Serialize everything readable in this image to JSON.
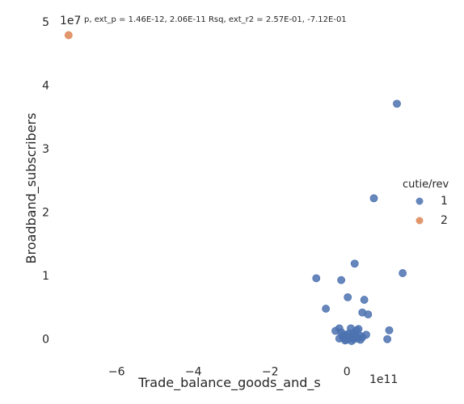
{
  "chart_data": {
    "type": "scatter",
    "title": "p, ext_p = 1.46E-12, 2.06E-11 Rsq, ext_r2 = 2.57E-01, -7.12E-01",
    "xlabel": "Trade_balance_goods_and_s",
    "ylabel": "Broadband_subscribers",
    "x_offset_label": "1e11",
    "y_offset_label": "1e7",
    "xlim": [
      -7.5,
      1.7
    ],
    "ylim": [
      -0.35,
      5.1
    ],
    "x_unit_scale": 100000000000.0,
    "y_unit_scale": 10000000.0,
    "xticks": [
      -6,
      -4,
      -2,
      0
    ],
    "xtick_labels": [
      "−6",
      "−4",
      "−2",
      "0"
    ],
    "yticks": [
      0,
      1,
      2,
      3,
      4,
      5
    ],
    "ytick_labels": [
      "0",
      "1",
      "2",
      "3",
      "4",
      "5"
    ],
    "grid": false,
    "legend": {
      "title": "cutie/rev",
      "placement": "center-right"
    },
    "series": [
      {
        "name": "1",
        "color": "#4c72b0",
        "points": [
          [
            1.3,
            3.72
          ],
          [
            0.7,
            2.23
          ],
          [
            0.2,
            1.2
          ],
          [
            1.45,
            1.05
          ],
          [
            -0.8,
            0.97
          ],
          [
            -0.15,
            0.94
          ],
          [
            0.02,
            0.67
          ],
          [
            0.45,
            0.63
          ],
          [
            -0.55,
            0.49
          ],
          [
            0.4,
            0.43
          ],
          [
            0.55,
            0.4
          ],
          [
            -0.2,
            0.18
          ],
          [
            -0.3,
            0.14
          ],
          [
            -0.15,
            0.12
          ],
          [
            0.1,
            0.18
          ],
          [
            0.25,
            0.15
          ],
          [
            0.3,
            0.17
          ],
          [
            0.15,
            0.1
          ],
          [
            -0.05,
            0.08
          ],
          [
            0.05,
            0.1
          ],
          [
            0.2,
            0.08
          ],
          [
            0.35,
            0.06
          ],
          [
            0.5,
            0.08
          ],
          [
            -0.2,
            0.02
          ],
          [
            -0.1,
            0.03
          ],
          [
            0.0,
            0.0
          ],
          [
            0.08,
            0.03
          ],
          [
            0.18,
            0.01
          ],
          [
            0.28,
            0.02
          ],
          [
            0.35,
            0.0
          ],
          [
            -0.05,
            -0.01
          ],
          [
            0.12,
            -0.02
          ],
          [
            0.25,
            0.04
          ],
          [
            0.4,
            0.04
          ],
          [
            0.03,
            0.05
          ],
          [
            -0.12,
            0.06
          ],
          [
            1.1,
            0.15
          ],
          [
            1.05,
            0.01
          ]
        ]
      },
      {
        "name": "2",
        "color": "#dd8452",
        "points": [
          [
            -7.25,
            4.8
          ]
        ]
      }
    ]
  }
}
